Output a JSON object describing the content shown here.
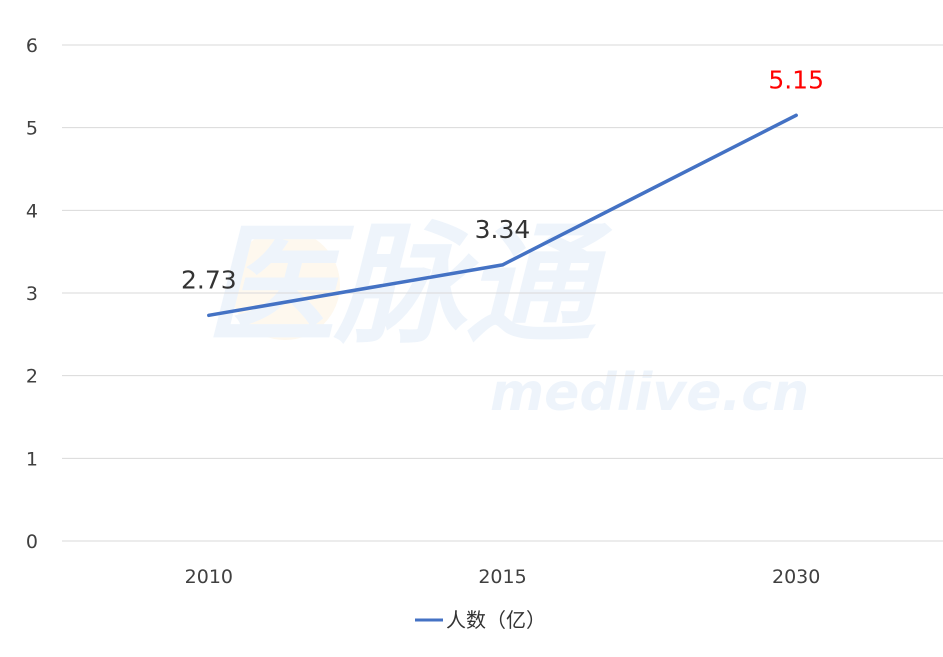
{
  "watermark": {
    "cn": "医脉通",
    "url": "medlive.cn"
  },
  "colors": {
    "line": "#4472c4",
    "highlight": "#ff0000",
    "label": "#333333",
    "grid": "#d9d9d9"
  },
  "chart_data": {
    "type": "line",
    "categories": [
      "2010",
      "2015",
      "2030"
    ],
    "series": [
      {
        "name": "人数（亿）",
        "values": [
          2.73,
          3.34,
          5.15
        ]
      }
    ],
    "data_labels": [
      "2.73",
      "3.34",
      "5.15"
    ],
    "highlight_index": 2,
    "ylim": [
      0,
      6
    ],
    "yticks": [
      0,
      1,
      2,
      3,
      4,
      5,
      6
    ],
    "grid": true,
    "legend": "bottom",
    "title": "",
    "xlabel": "",
    "ylabel": ""
  }
}
